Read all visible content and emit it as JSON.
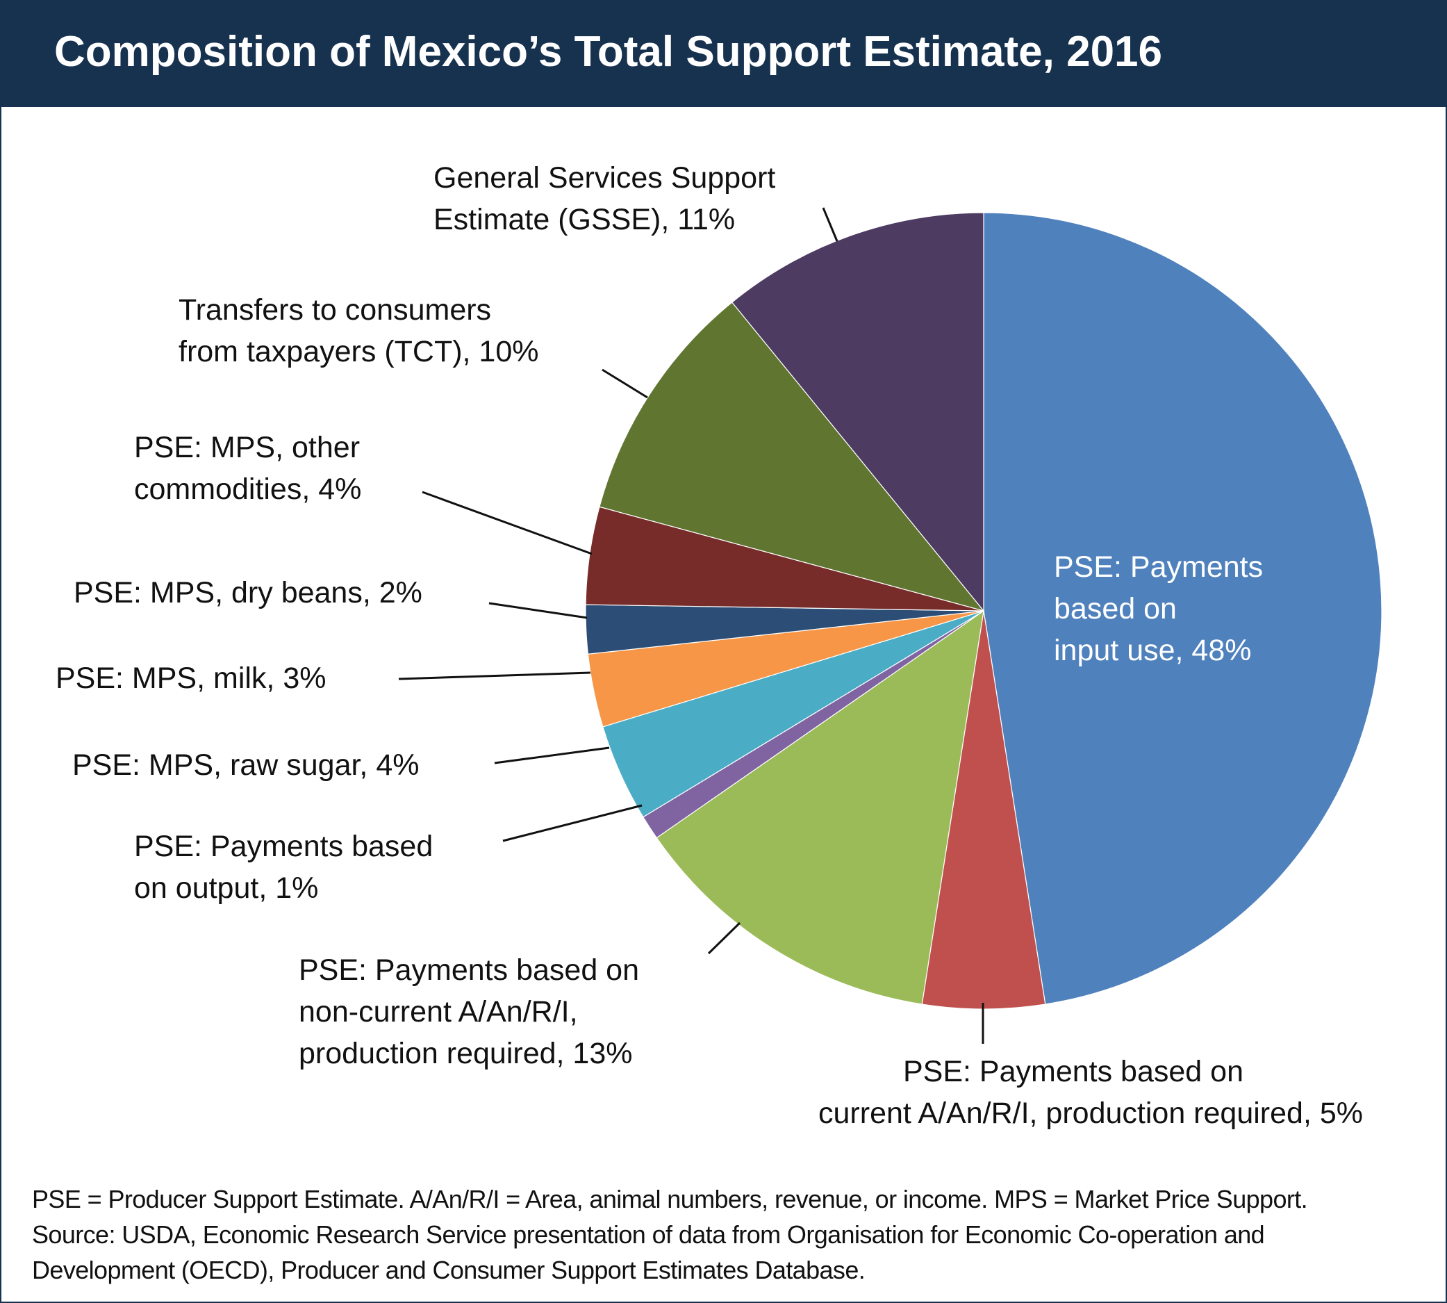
{
  "chart_data": {
    "type": "pie",
    "title": "Composition of Mexico’s Total Support Estimate, 2016",
    "unit": "%",
    "slices": [
      {
        "label": [
          "PSE: Payments",
          "based on",
          "input use, 48%"
        ],
        "value": 48,
        "color": "#4f81bd"
      },
      {
        "label": [
          "PSE: Payments based on",
          "current A/An/R/I, production required, 5%"
        ],
        "value": 5,
        "color": "#c0504d"
      },
      {
        "label": [
          "PSE: Payments based on",
          "non-current A/An/R/I,",
          "production required, 13%"
        ],
        "value": 13,
        "color": "#9bbb59"
      },
      {
        "label": [
          "PSE: Payments based",
          "on output, 1%"
        ],
        "value": 1,
        "color": "#8064a2"
      },
      {
        "label": [
          "PSE: MPS, raw sugar, 4%"
        ],
        "value": 4,
        "color": "#4bacc6"
      },
      {
        "label": [
          "PSE: MPS, milk, 3%"
        ],
        "value": 3,
        "color": "#f79646"
      },
      {
        "label": [
          "PSE: MPS, dry beans, 2%"
        ],
        "value": 2,
        "color": "#2c4d75"
      },
      {
        "label": [
          "PSE: MPS, other",
          "commodities, 4%"
        ],
        "value": 4,
        "color": "#772c2a"
      },
      {
        "label": [
          "Transfers to consumers",
          "from taxpayers (TCT), 10%"
        ],
        "value": 10,
        "color": "#5f7530"
      },
      {
        "label": [
          "General Services Support",
          "Estimate (GSSE), 11%"
        ],
        "value": 11,
        "color": "#4d3b62"
      }
    ]
  },
  "footnote": {
    "lines": [
      "PSE = Producer Support Estimate. A/An/R/I = Area, animal numbers, revenue, or income. MPS = Market Price Support.",
      "Source: USDA, Economic Research Service presentation of data from Organisation for Economic Co-operation and",
      "Development (OECD), Producer and Consumer Support Estimates Database."
    ]
  },
  "colors": {
    "header_background": "#17324f",
    "header_text": "#ffffff"
  }
}
